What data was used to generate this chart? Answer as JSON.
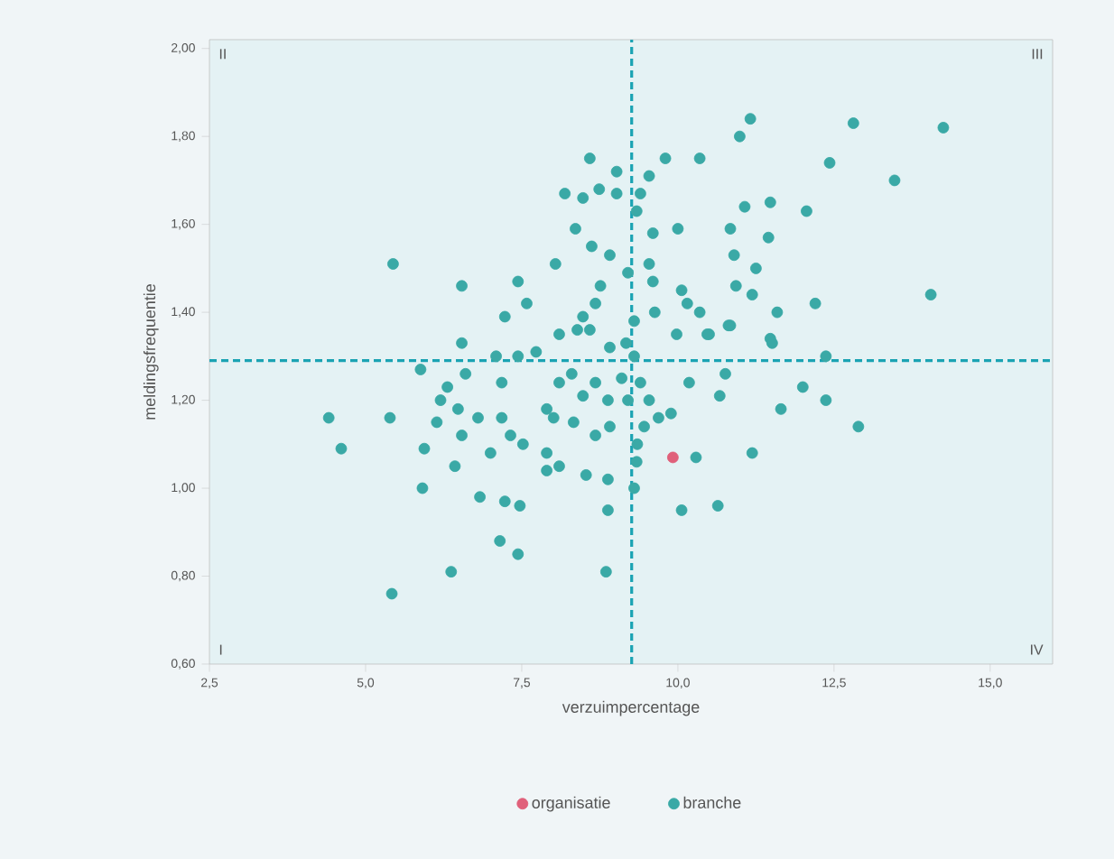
{
  "chart_data": {
    "type": "scatter",
    "xlabel": "verzuimpercentage",
    "ylabel": "meldingsfrequentie",
    "xlim": [
      2.5,
      16.0
    ],
    "ylim": [
      0.6,
      2.02
    ],
    "xticks": [
      {
        "value": 2.5,
        "label": "2,5"
      },
      {
        "value": 5.0,
        "label": "5,0"
      },
      {
        "value": 7.5,
        "label": "7,5"
      },
      {
        "value": 10.0,
        "label": "10,0"
      },
      {
        "value": 12.5,
        "label": "12,5"
      },
      {
        "value": 15.0,
        "label": "15,0"
      }
    ],
    "yticks": [
      {
        "value": 0.6,
        "label": "0,60"
      },
      {
        "value": 0.8,
        "label": "0,80"
      },
      {
        "value": 1.0,
        "label": "1,00"
      },
      {
        "value": 1.2,
        "label": "1,20"
      },
      {
        "value": 1.4,
        "label": "1,40"
      },
      {
        "value": 1.6,
        "label": "1,60"
      },
      {
        "value": 1.8,
        "label": "1,80"
      },
      {
        "value": 2.0,
        "label": "2,00"
      }
    ],
    "legend": "bottom",
    "annotations": [
      "II",
      "III",
      "I",
      "IV"
    ],
    "ref_lines": [
      {
        "axis": "x",
        "value": 9.26,
        "color": "#1aa3b3",
        "line_style": "dashed"
      },
      {
        "axis": "y",
        "value": 1.29,
        "color": "#1aa3b3",
        "line_style": "dashed"
      }
    ],
    "series": [
      {
        "name": "organisatie",
        "color": "#e0607a",
        "x": [
          9.92
        ],
        "values": [
          1.07
        ]
      },
      {
        "name": "branche",
        "color": "#3aa9a6",
        "x": [
          5.44,
          6.54,
          7.44,
          7.23,
          7.58,
          8.04,
          8.36,
          8.19,
          8.59,
          8.48,
          8.74,
          8.62,
          8.91,
          9.02,
          9.02,
          8.76,
          8.68,
          8.48,
          8.39,
          11.16,
          10.99,
          12.81,
          14.25,
          12.43,
          13.47,
          9.8,
          10.35,
          9.54,
          9.4,
          9.34,
          11.07,
          11.48,
          12.06,
          10.0,
          10.84,
          9.6,
          11.45,
          10.9,
          9.54,
          11.25,
          9.2,
          9.6,
          10.93,
          11.19,
          10.06,
          10.15,
          10.35,
          12.2,
          11.59,
          14.05,
          9.63,
          10.81,
          11.48,
          9.98,
          10.5,
          6.54,
          4.41,
          4.61,
          5.39,
          5.94,
          5.91,
          5.42,
          6.37,
          6.43,
          6.14,
          6.2,
          6.31,
          6.48,
          6.54,
          6.8,
          7.0,
          6.83,
          7.18,
          7.18,
          7.32,
          7.52,
          7.23,
          7.47,
          7.15,
          7.44,
          5.88,
          6.6,
          7.73,
          7.9,
          8.01,
          7.9,
          7.9,
          8.1,
          8.33,
          8.48,
          8.53,
          8.68,
          8.88,
          8.88,
          8.85,
          8.88,
          8.91,
          8.1,
          8.3,
          8.68,
          8.91,
          7.09,
          8.1,
          8.59,
          7.44,
          9.34,
          10.29,
          11.19,
          10.06,
          10.64,
          12.89,
          12.37,
          11.65,
          12.0,
          10.67,
          10.18,
          9.4,
          9.54,
          9.89,
          9.46,
          9.69,
          11.51,
          12.37,
          10.84,
          10.47,
          10.76,
          9.17,
          9.3,
          9.1,
          9.3,
          9.2,
          9.35,
          9.3
        ],
        "values": [
          1.51,
          1.46,
          1.47,
          1.39,
          1.42,
          1.51,
          1.59,
          1.67,
          1.75,
          1.66,
          1.68,
          1.55,
          1.53,
          1.67,
          1.72,
          1.46,
          1.42,
          1.39,
          1.36,
          1.84,
          1.8,
          1.83,
          1.82,
          1.74,
          1.7,
          1.75,
          1.75,
          1.71,
          1.67,
          1.63,
          1.64,
          1.65,
          1.63,
          1.59,
          1.59,
          1.58,
          1.57,
          1.53,
          1.51,
          1.5,
          1.49,
          1.47,
          1.46,
          1.44,
          1.45,
          1.42,
          1.4,
          1.42,
          1.4,
          1.44,
          1.4,
          1.37,
          1.34,
          1.35,
          1.35,
          1.33,
          1.16,
          1.09,
          1.16,
          1.09,
          1.0,
          0.76,
          0.81,
          1.05,
          1.15,
          1.2,
          1.23,
          1.18,
          1.12,
          1.16,
          1.08,
          0.98,
          1.24,
          1.16,
          1.12,
          1.1,
          0.97,
          0.96,
          0.88,
          0.85,
          1.27,
          1.26,
          1.31,
          1.18,
          1.16,
          1.08,
          1.04,
          1.05,
          1.15,
          1.21,
          1.03,
          1.12,
          1.02,
          0.95,
          0.81,
          1.2,
          1.14,
          1.24,
          1.26,
          1.24,
          1.32,
          1.3,
          1.35,
          1.36,
          1.3,
          1.06,
          1.07,
          1.08,
          0.95,
          0.96,
          1.14,
          1.2,
          1.18,
          1.23,
          1.21,
          1.24,
          1.24,
          1.2,
          1.17,
          1.14,
          1.16,
          1.33,
          1.3,
          1.37,
          1.35,
          1.26,
          1.33,
          1.3,
          1.25,
          1.38,
          1.2,
          1.1,
          1.0
        ]
      }
    ]
  }
}
